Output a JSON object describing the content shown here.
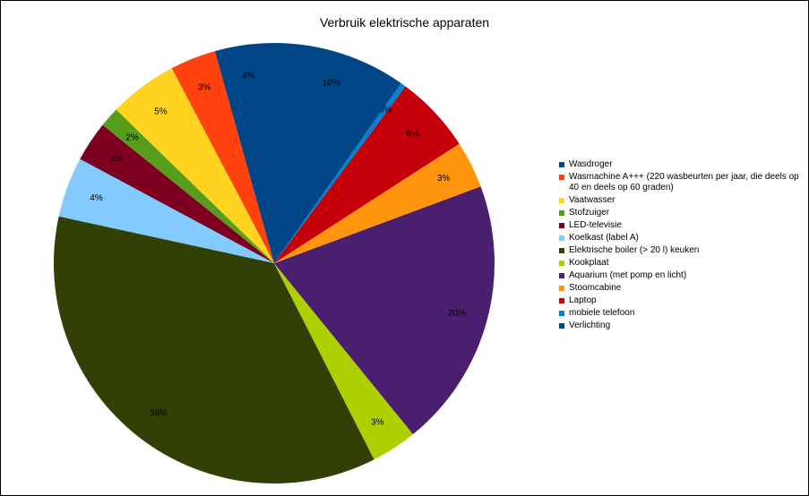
{
  "chart_data": {
    "type": "pie",
    "title": "Verbruik elektrische apparaten",
    "slices": [
      {
        "label": "Wasdroger",
        "percent": 4.4,
        "display": "4%",
        "color": "#004586"
      },
      {
        "label": "Wasmachine A+++ (220 wasbeurten per jaar, die deels op 40 en deels op 60 graden)",
        "percent": 3.4,
        "display": "3%",
        "color": "#FF420E"
      },
      {
        "label": "Vaatwasser",
        "percent": 5.1,
        "display": "5%",
        "color": "#FFD320"
      },
      {
        "label": "Stofzuiger",
        "percent": 1.5,
        "display": "2%",
        "color": "#579D1C"
      },
      {
        "label": "LED-televisie",
        "percent": 3.0,
        "display": "3%",
        "color": "#7E0021"
      },
      {
        "label": "Koelkast (label A)",
        "percent": 4.5,
        "display": "4%",
        "color": "#83CAFF"
      },
      {
        "label": "Elektrische boiler (> 20 l) keuken",
        "percent": 36.4,
        "display": "36%",
        "color": "#314004"
      },
      {
        "label": "Kookplaat",
        "percent": 3.4,
        "display": "3%",
        "color": "#AECF00"
      },
      {
        "label": "Aquarium (met pomp en licht)",
        "percent": 20.1,
        "display": "20%",
        "color": "#4B1F6F"
      },
      {
        "label": "Stoomcabine",
        "percent": 3.5,
        "display": "3%",
        "color": "#FF950E"
      },
      {
        "label": "Laptop",
        "percent": 5.8,
        "display": "6%",
        "color": "#C5000B"
      },
      {
        "label": "mobiele telefoon",
        "percent": 0.4,
        "display": "0%",
        "color": "#0084D1"
      },
      {
        "label": "Verlichting",
        "percent": 9.9,
        "display": "10%",
        "color": "#004586"
      }
    ],
    "legend_position": "right"
  }
}
